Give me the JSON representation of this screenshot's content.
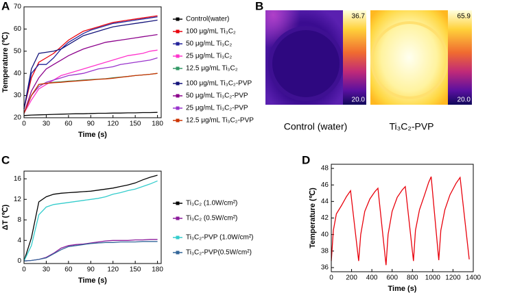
{
  "chart_data": [
    {
      "type": "line",
      "panel": "A",
      "xlabel": "Time (s)",
      "ylabel": "Temperature (℃)",
      "xlim": [
        0,
        185
      ],
      "xticks": [
        0,
        30,
        60,
        90,
        120,
        150,
        180
      ],
      "ylim": [
        20,
        70
      ],
      "yticks": [
        20,
        30,
        40,
        50,
        60,
        70
      ],
      "x": [
        0,
        10,
        20,
        30,
        40,
        50,
        60,
        70,
        80,
        90,
        100,
        110,
        120,
        130,
        140,
        150,
        160,
        170,
        180
      ],
      "series": [
        {
          "name": "Control(water)",
          "color": "#000000",
          "values": [
            21,
            21.2,
            21.3,
            21.4,
            21.5,
            21.6,
            21.7,
            21.8,
            21.8,
            21.9,
            22,
            22,
            22.1,
            22.1,
            22.2,
            22.2,
            22.3,
            22.3,
            22.4
          ]
        },
        {
          "name": "100 μg/mL Ti₃C₂",
          "color": "#e8000b",
          "values": [
            24,
            38,
            45,
            47,
            49,
            52,
            55,
            57,
            59,
            60,
            61,
            62,
            63,
            63.5,
            64,
            64.5,
            65,
            65.5,
            66
          ]
        },
        {
          "name": "50 μg/mL Ti₃C₂",
          "color": "#22229a",
          "values": [
            24,
            40,
            44,
            44,
            47,
            51,
            54,
            56,
            58,
            59.5,
            60.5,
            61.5,
            62.5,
            63,
            63.5,
            64,
            64.5,
            65,
            65.5
          ]
        },
        {
          "name": "25 μg/mL Ti₃C₂",
          "color": "#ff33cc",
          "values": [
            22,
            28,
            33,
            35,
            37,
            39,
            40,
            41,
            42,
            43,
            44,
            45,
            46,
            47,
            48,
            48.5,
            49,
            50,
            50.5
          ]
        },
        {
          "name": "12.5 μg/mL Ti₃C₂",
          "color": "#339966",
          "values": [
            22,
            30,
            35,
            35.5,
            36,
            36.2,
            36.5,
            36.7,
            37,
            37.2,
            37.4,
            37.6,
            38,
            38.3,
            38.6,
            39,
            39.3,
            39.6,
            40
          ]
        },
        {
          "name": "100 μg/mL Ti₃C₂-PVP",
          "color": "#13137a",
          "values": [
            24,
            42,
            49,
            49.5,
            50,
            51,
            53,
            55,
            57,
            58,
            59,
            60,
            61,
            61.5,
            62,
            62.5,
            63,
            63.5,
            64
          ]
        },
        {
          "name": "50 μg/mL Ti₃C₂-PVP",
          "color": "#8b008b",
          "values": [
            22,
            32,
            38,
            42,
            44,
            46,
            48,
            49.5,
            51,
            52,
            53,
            54,
            54.5,
            55,
            55.5,
            56,
            56.5,
            57,
            57.5
          ]
        },
        {
          "name": "25 μg/mL Ti₃C₂-PVP",
          "color": "#9933cc",
          "values": [
            22,
            30,
            34,
            36,
            37,
            38,
            39,
            39.5,
            40,
            41,
            42,
            42.5,
            43,
            44,
            44.5,
            45,
            45.5,
            46,
            47
          ]
        },
        {
          "name": "12.5 μg/mL Ti₃C₂-PVP",
          "color": "#cc3300",
          "values": [
            22,
            30,
            35,
            35.5,
            35.8,
            36,
            36.3,
            36.5,
            36.8,
            37,
            37.3,
            37.5,
            37.8,
            38.2,
            38.6,
            39,
            39.3,
            39.6,
            40
          ]
        }
      ]
    },
    {
      "type": "line",
      "panel": "C",
      "xlabel": "Time (s)",
      "ylabel": "ΔT (℃)",
      "xlim": [
        0,
        185
      ],
      "xticks": [
        0,
        30,
        60,
        90,
        120,
        150,
        180
      ],
      "ylim": [
        -0.5,
        17.5
      ],
      "yticks": [
        0,
        4,
        8,
        12,
        16
      ],
      "x": [
        0,
        10,
        20,
        30,
        40,
        50,
        60,
        70,
        80,
        90,
        100,
        110,
        120,
        130,
        140,
        150,
        160,
        170,
        180
      ],
      "series": [
        {
          "name": "Ti₃C₂ (1.0W/cm²)",
          "color": "#000000",
          "values": [
            0,
            4.5,
            11.5,
            12.5,
            13,
            13.2,
            13.3,
            13.4,
            13.5,
            13.6,
            13.8,
            14,
            14.2,
            14.5,
            14.8,
            15.2,
            15.8,
            16.3,
            16.7
          ]
        },
        {
          "name": "Ti₃C₂ (0.5W/cm²)",
          "color": "#8b1a9b",
          "values": [
            0,
            0.1,
            0.3,
            0.7,
            1.5,
            2.5,
            3,
            3.2,
            3.3,
            3.5,
            3.7,
            3.9,
            4,
            4,
            4,
            4.1,
            4.1,
            4.2,
            4.2
          ]
        },
        {
          "name": "Ti₃C₂-PVP (1.0W/cm²)",
          "color": "#33cccc",
          "values": [
            0,
            3,
            9,
            10.5,
            11,
            11.2,
            11.4,
            11.6,
            11.8,
            12,
            12.2,
            12.5,
            13,
            13.3,
            13.7,
            14,
            14.5,
            15,
            15.6
          ]
        },
        {
          "name": "Ti₃C₂-PVP(0.5W/cm²)",
          "color": "#336699",
          "values": [
            0,
            0.1,
            0.3,
            0.6,
            1.4,
            2.2,
            2.8,
            3,
            3.2,
            3.4,
            3.5,
            3.6,
            3.6,
            3.7,
            3.7,
            3.7,
            3.8,
            3.8,
            3.8
          ]
        }
      ]
    },
    {
      "type": "line",
      "panel": "D",
      "xlabel": "Time (s)",
      "ylabel": "Temperature (℃)",
      "xlim": [
        0,
        1400
      ],
      "xticks": [
        0,
        200,
        400,
        600,
        800,
        1000,
        1200,
        1400
      ],
      "ylim": [
        35.5,
        48.5
      ],
      "yticks": [
        36,
        38,
        40,
        42,
        44,
        46,
        48
      ],
      "x": [
        0,
        20,
        50,
        100,
        150,
        190,
        270,
        290,
        330,
        380,
        430,
        460,
        540,
        560,
        600,
        650,
        700,
        730,
        810,
        830,
        870,
        920,
        960,
        985,
        1060,
        1080,
        1120,
        1170,
        1230,
        1270,
        1360
      ],
      "series": [
        {
          "color": "#e8000b",
          "values": [
            36.8,
            40.5,
            42.5,
            43.5,
            44.6,
            45.3,
            36.8,
            40,
            42.8,
            44.3,
            45.2,
            45.6,
            36.3,
            40,
            42.8,
            44.5,
            45.4,
            45.8,
            36.8,
            40.5,
            43,
            44.8,
            46.3,
            47,
            36.9,
            40.5,
            43,
            44.8,
            46.2,
            46.9,
            37
          ]
        }
      ]
    }
  ],
  "panel_b": {
    "panel": "B",
    "images": [
      {
        "caption": "Control (water)",
        "colorbar_max": "36.7",
        "colorbar_min": "20.0"
      },
      {
        "caption": "Ti₃C₂-PVP",
        "colorbar_max": "65.9",
        "colorbar_min": "20.0"
      }
    ]
  }
}
